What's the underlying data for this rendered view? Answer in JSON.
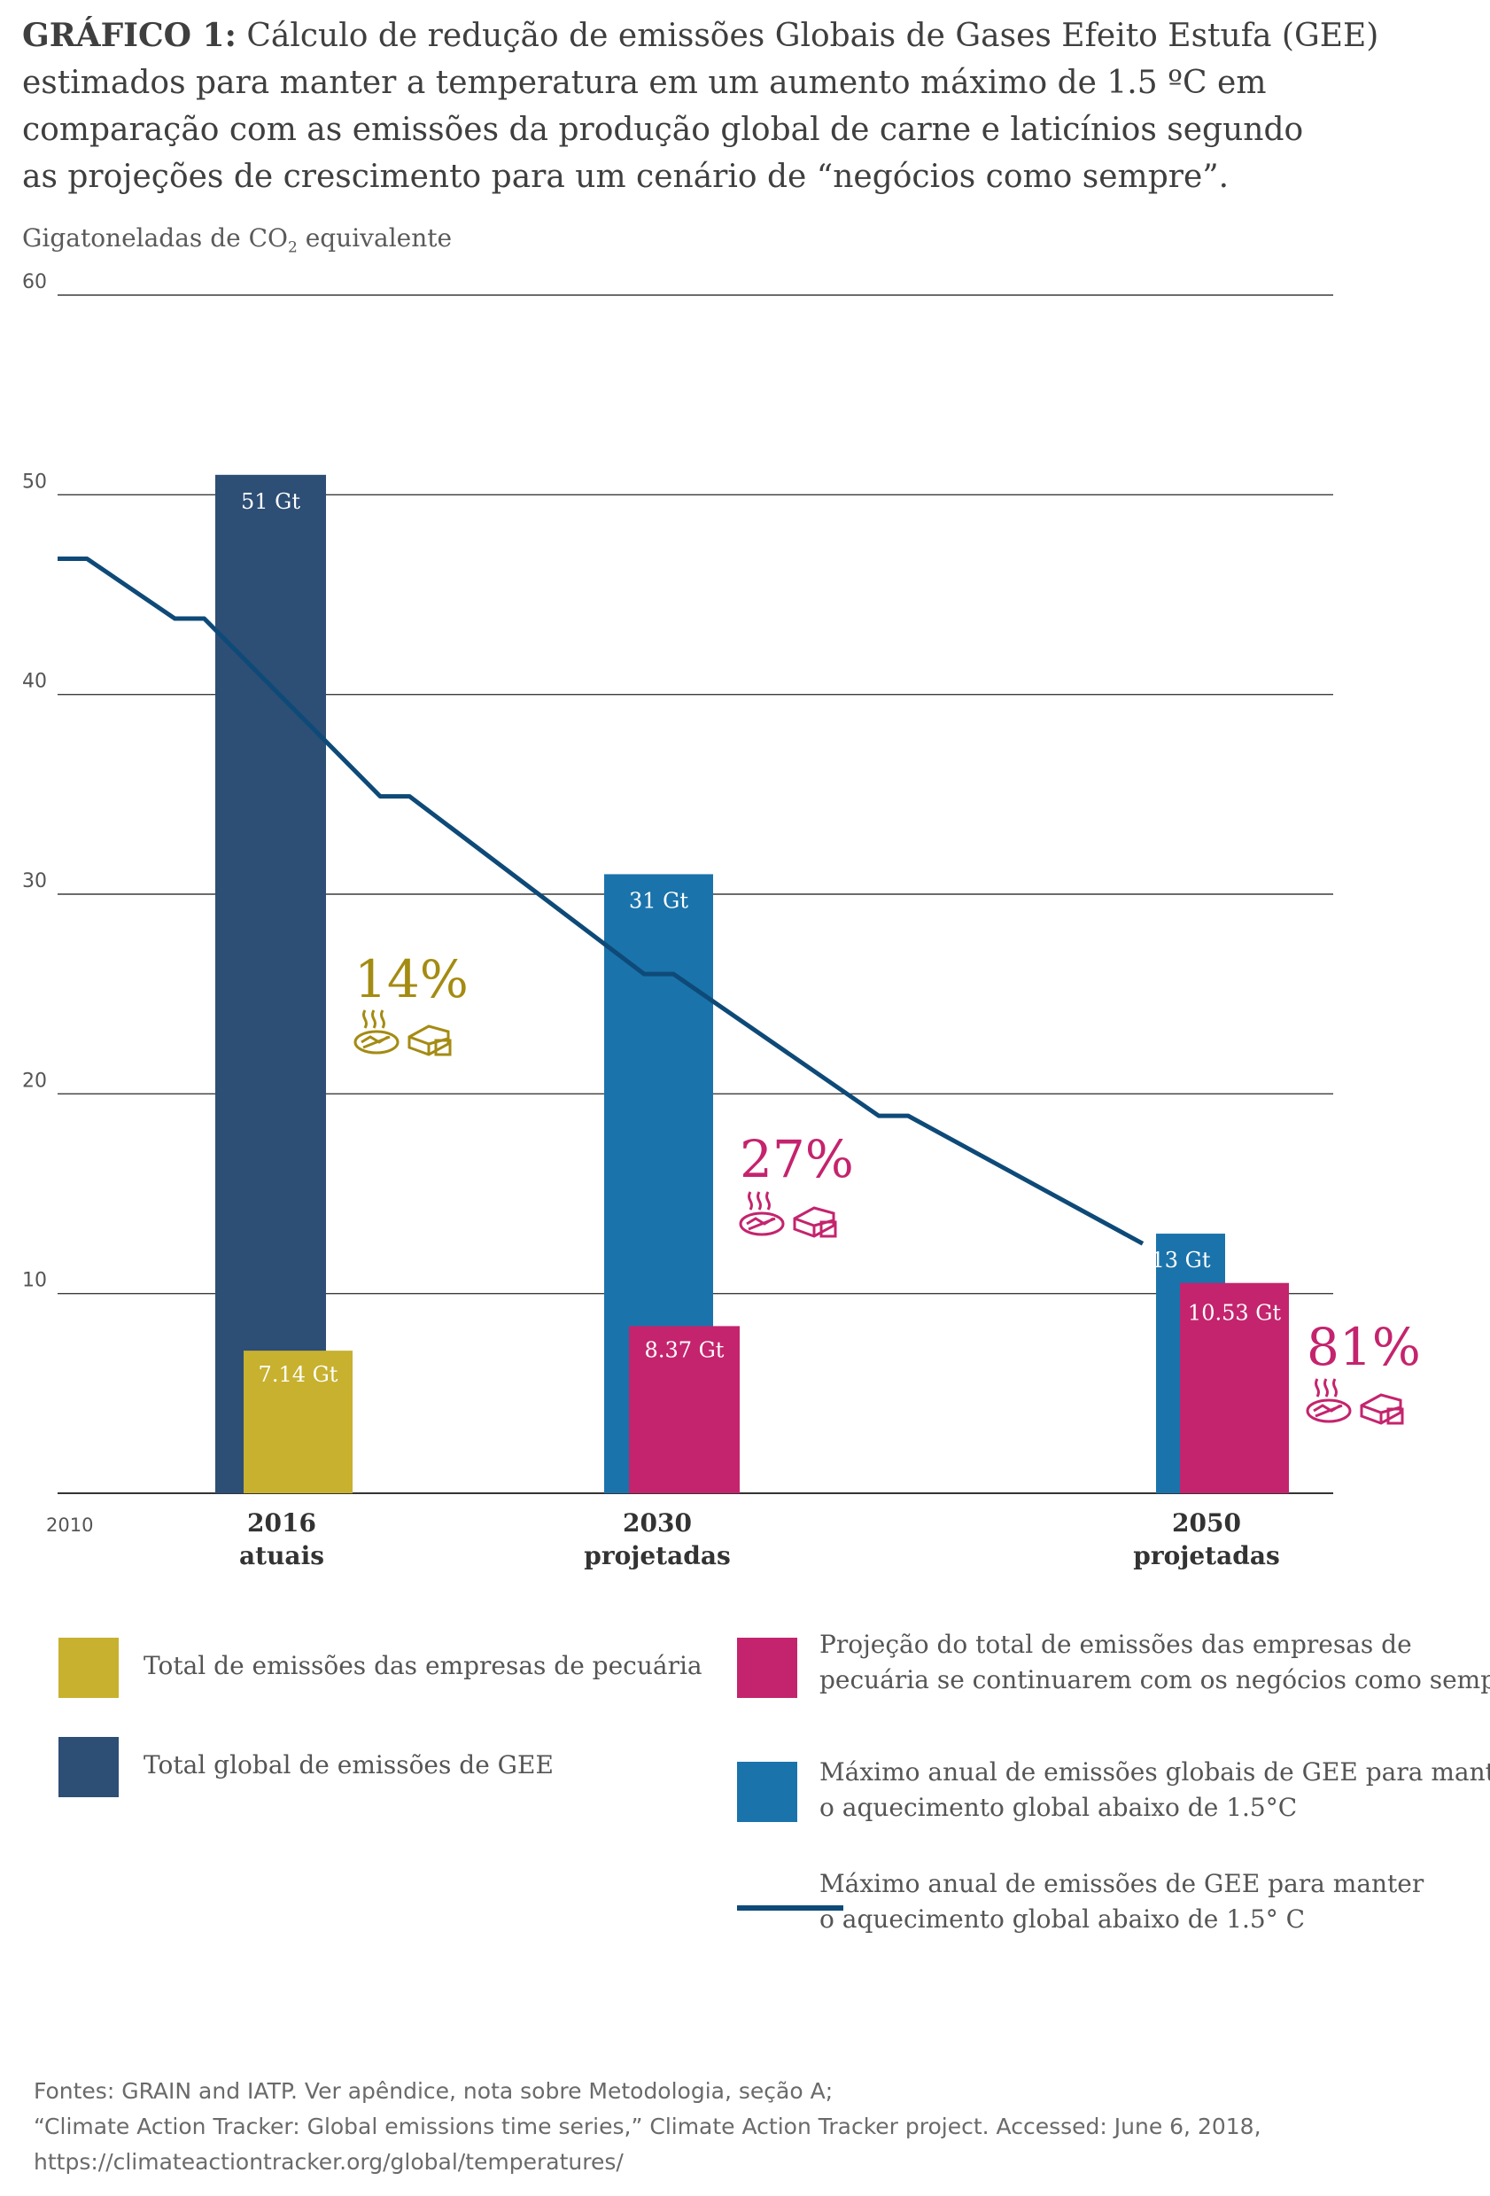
{
  "title": {
    "lead": "GRÁFICO 1:",
    "lines": [
      " Cálculo de redução de emissões Globais de Gases Efeito Estufa (GEE)",
      "estimados para manter a temperatura em um aumento máximo de 1.5 ºC em",
      "comparação com as emissões da produção global de carne e laticínios segundo",
      "as projeções de crescimento  para um cenário de “negócios como sempre”."
    ]
  },
  "ylabel": {
    "prefix": "Gigatoneladas de CO",
    "sub": "2",
    "suffix": " equivalente"
  },
  "colors": {
    "gold": "#c7b12f",
    "navy": "#2d4e75",
    "blue": "#1b73ab",
    "magenta": "#c4246d",
    "line": "#0e4a78",
    "gold_text": "#a48b12",
    "grid": "#3c3c3c"
  },
  "chart_data": {
    "type": "bar",
    "ylim": [
      0,
      60
    ],
    "yticks": [
      10,
      20,
      30,
      40,
      50,
      60
    ],
    "grid": true,
    "x_start_label": "2010",
    "groups": [
      {
        "year": "2016",
        "subtitle": "atuais",
        "bars": [
          {
            "series": "Total global de emissões de GEE",
            "value": 51,
            "label": "51 Gt",
            "color": "navy"
          },
          {
            "series": "Total de emissões das empresas de pecuária",
            "value": 7.14,
            "label": "7.14 Gt",
            "color": "gold"
          }
        ],
        "percent": "14%",
        "percent_color": "gold_text"
      },
      {
        "year": "2030",
        "subtitle": "projetadas",
        "bars": [
          {
            "series": "Máximo anual de emissões globais de GEE para manter o aquecimento global abaixo de 1.5°C",
            "value": 31,
            "label": "31 Gt",
            "color": "blue"
          },
          {
            "series": "Projeção do total de emissões das empresas de pecuária se continuarem com os negócios como sempre",
            "value": 8.37,
            "label": "8.37 Gt",
            "color": "magenta"
          }
        ],
        "percent": "27%",
        "percent_color": "magenta"
      },
      {
        "year": "2050",
        "subtitle": "projetadas",
        "bars": [
          {
            "series": "Máximo anual de emissões globais de GEE para manter o aquecimento global abaixo de 1.5°C",
            "value": 13,
            "label": "13 Gt",
            "color": "blue"
          },
          {
            "series": "Projeção do total de emissões das empresas de pecuária se continuarem com os negócios como sempre",
            "value": 10.53,
            "label": "10.53 Gt",
            "color": "magenta"
          }
        ],
        "percent": "81%",
        "percent_color": "magenta"
      }
    ],
    "line_series": {
      "name": "Máximo anual de emissões de GEE para manter o aquecimento global abaixo de 1.5° C",
      "points": [
        [
          2010,
          46.8
        ],
        [
          2011,
          46.8
        ],
        [
          2014,
          43.8
        ],
        [
          2015,
          43.8
        ],
        [
          2021,
          34.9
        ],
        [
          2022,
          34.9
        ],
        [
          2030,
          26.0
        ],
        [
          2031,
          26.0
        ],
        [
          2038,
          18.9
        ],
        [
          2039,
          18.9
        ],
        [
          2047,
          12.5
        ]
      ]
    }
  },
  "legend": {
    "gold": "Total de emissões das empresas de pecuária",
    "navy": "Total global de emissões de GEE",
    "magenta": [
      "Projeção do total de emissões das empresas de",
      "pecuária se continuarem com os negócios como sempre"
    ],
    "blue": [
      "Máximo anual de emissões globais de GEE para manter",
      "o aquecimento global abaixo de 1.5°C"
    ],
    "line": [
      "Máximo anual de emissões de GEE para manter",
      "o aquecimento global abaixo de 1.5° C"
    ]
  },
  "source": [
    "Fontes: GRAIN and IATP. Ver apêndice, nota sobre Metodologia, seção A;",
    "“Climate Action Tracker: Global emissions time series,” Climate Action Tracker project. Accessed: June 6, 2018,",
    "https://climateactiontracker.org/global/temperatures/"
  ]
}
